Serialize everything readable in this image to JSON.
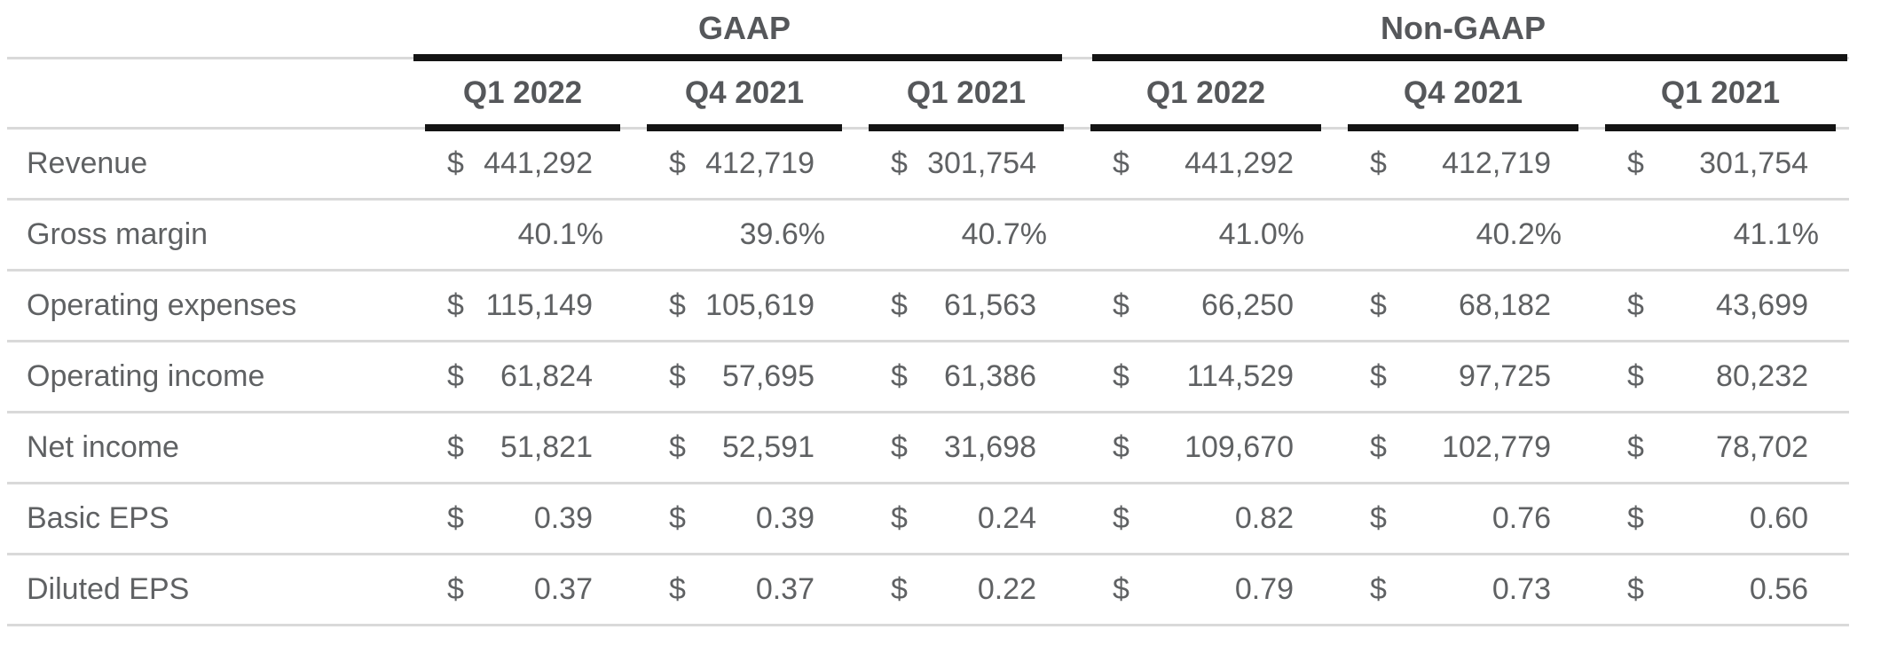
{
  "chart_data": {
    "type": "table",
    "title": "",
    "currency_symbol": "$",
    "groups": [
      {
        "label": "GAAP",
        "columns": [
          "Q1 2022",
          "Q4 2021",
          "Q1 2021"
        ]
      },
      {
        "label": "Non-GAAP",
        "columns": [
          "Q1 2022",
          "Q4 2021",
          "Q1 2021"
        ]
      }
    ],
    "rows": [
      {
        "label": "Revenue",
        "type": "currency",
        "values": [
          "441,292",
          "412,719",
          "301,754",
          "441,292",
          "412,719",
          "301,754"
        ]
      },
      {
        "label": "Gross margin",
        "type": "percent",
        "values": [
          "40.1%",
          "39.6%",
          "40.7%",
          "41.0%",
          "40.2%",
          "41.1%"
        ]
      },
      {
        "label": "Operating expenses",
        "type": "currency",
        "values": [
          "115,149",
          "105,619",
          "61,563",
          "66,250",
          "68,182",
          "43,699"
        ]
      },
      {
        "label": "Operating income",
        "type": "currency",
        "values": [
          "61,824",
          "57,695",
          "61,386",
          "114,529",
          "97,725",
          "80,232"
        ]
      },
      {
        "label": "Net income",
        "type": "currency",
        "values": [
          "51,821",
          "52,591",
          "31,698",
          "109,670",
          "102,779",
          "78,702"
        ]
      },
      {
        "label": "Basic EPS",
        "type": "currency",
        "values": [
          "0.39",
          "0.39",
          "0.24",
          "0.82",
          "0.76",
          "0.60"
        ]
      },
      {
        "label": "Diluted EPS",
        "type": "currency",
        "values": [
          "0.37",
          "0.37",
          "0.22",
          "0.79",
          "0.73",
          "0.56"
        ]
      }
    ]
  },
  "colors": {
    "text": "#5f6163",
    "header_text": "#55575a",
    "strong_rule": "#141414",
    "light_rule": "#d9d9d9",
    "background": "#ffffff"
  }
}
